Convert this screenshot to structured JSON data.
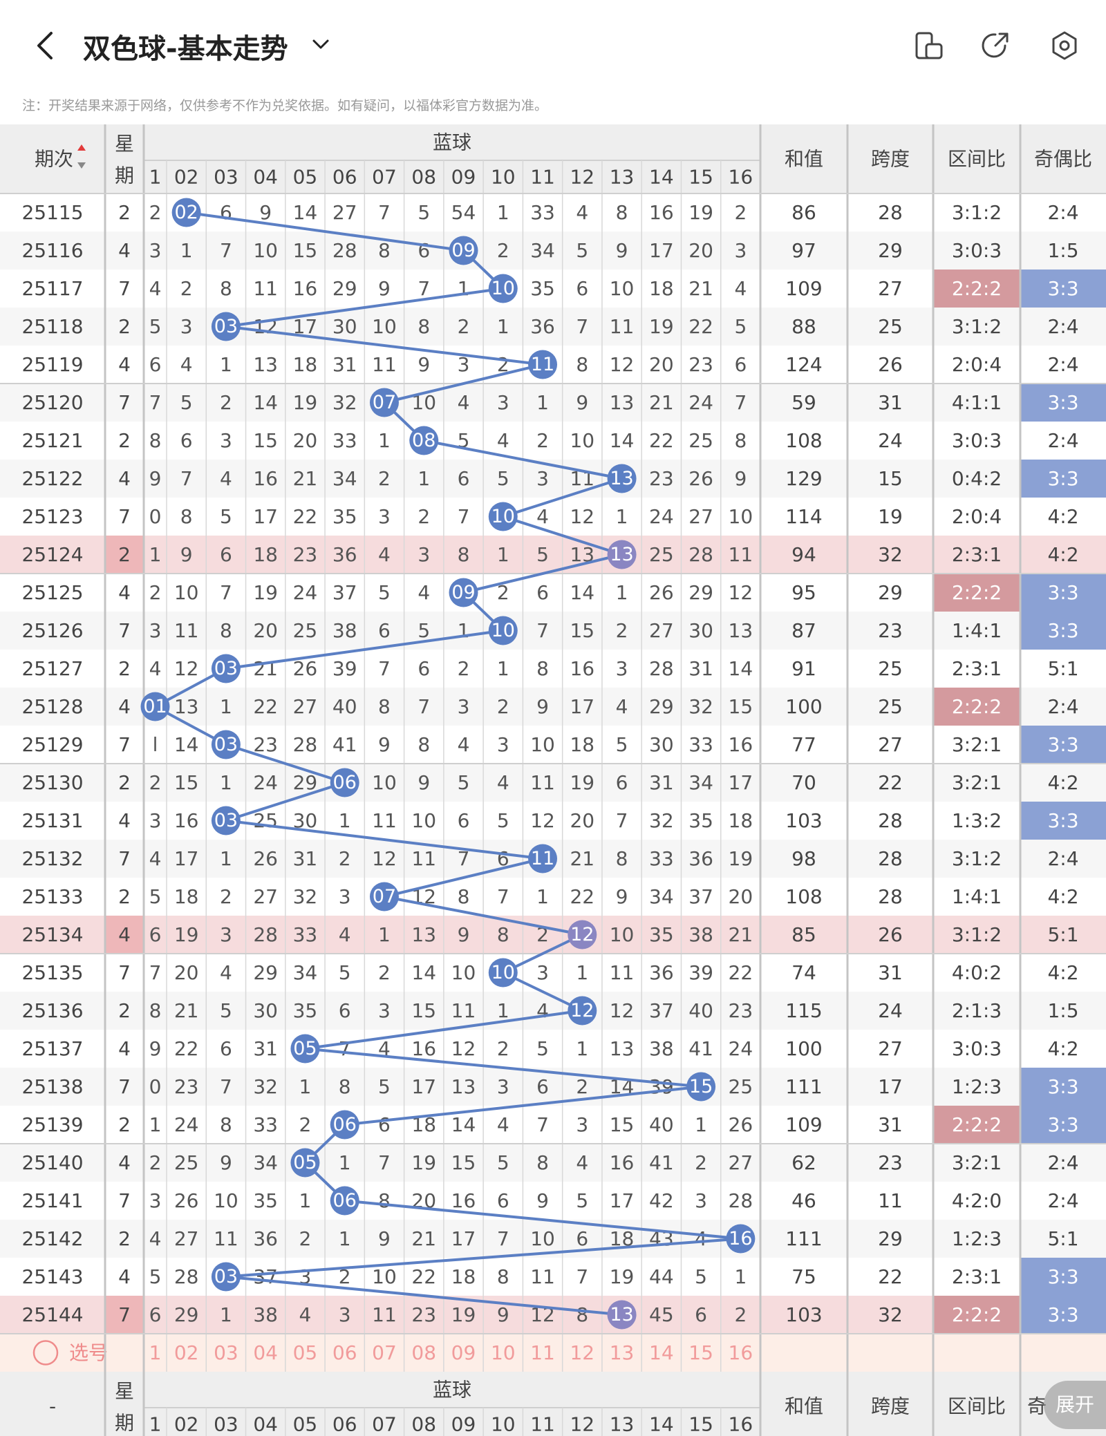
{
  "header": {
    "title": "双色球-基本走势",
    "back_icon": "chevron-left-icon",
    "dropdown_icon": "chevron-down-icon",
    "icons": [
      "phone-layout-icon",
      "share-icon",
      "settings-icon"
    ]
  },
  "note": "注：开奖结果来源于网络，仅供参考不作为兑奖依据。如有疑问，以福体彩官方数据为准。",
  "table": {
    "col_period": "期次",
    "col_week_top": "星",
    "col_week_bottom": "期",
    "col_blue": "蓝球",
    "col_sum": "和值",
    "col_span": "跨度",
    "col_zone": "区间比",
    "col_oddeven": "奇偶比",
    "blue_numbers": [
      "1",
      "02",
      "03",
      "04",
      "05",
      "06",
      "07",
      "08",
      "09",
      "10",
      "11",
      "12",
      "13",
      "14",
      "15",
      "16"
    ],
    "select_label": "选号",
    "footer_period": "-",
    "footer_oddeven": "奇",
    "expand_button": "展开",
    "colors": {
      "blue": "#5b7fc4",
      "zone_hit": "#d49a9e",
      "oddeven_hit": "#8ba1d4",
      "highlight_row": "#f6dcdd",
      "select_row": "#fdeee7"
    }
  },
  "rows": [
    {
      "period": "25115",
      "week": "2",
      "blue": 2,
      "cells": [
        "2",
        "",
        "6",
        "9",
        "14",
        "27",
        "7",
        "5",
        "54",
        "1",
        "33",
        "4",
        "8",
        "16",
        "19",
        "2"
      ],
      "sum": "86",
      "span": "28",
      "zone": "3:1:2",
      "oe": "2:4",
      "hl": false,
      "zoneHit": false,
      "oeHit": false
    },
    {
      "period": "25116",
      "week": "4",
      "blue": 9,
      "cells": [
        "3",
        "1",
        "7",
        "10",
        "15",
        "28",
        "8",
        "6",
        "",
        "2",
        "34",
        "5",
        "9",
        "17",
        "20",
        "3"
      ],
      "sum": "97",
      "span": "29",
      "zone": "3:0:3",
      "oe": "1:5",
      "hl": false,
      "zoneHit": false,
      "oeHit": false
    },
    {
      "period": "25117",
      "week": "7",
      "blue": 10,
      "cells": [
        "4",
        "2",
        "8",
        "11",
        "16",
        "29",
        "9",
        "7",
        "1",
        "",
        "35",
        "6",
        "10",
        "18",
        "21",
        "4"
      ],
      "sum": "109",
      "span": "27",
      "zone": "2:2:2",
      "oe": "3:3",
      "hl": false,
      "zoneHit": true,
      "oeHit": true
    },
    {
      "period": "25118",
      "week": "2",
      "blue": 3,
      "cells": [
        "5",
        "3",
        "",
        "12",
        "17",
        "30",
        "10",
        "8",
        "2",
        "1",
        "36",
        "7",
        "11",
        "19",
        "22",
        "5"
      ],
      "sum": "88",
      "span": "25",
      "zone": "3:1:2",
      "oe": "2:4",
      "hl": false,
      "zoneHit": false,
      "oeHit": false
    },
    {
      "period": "25119",
      "week": "4",
      "blue": 11,
      "cells": [
        "6",
        "4",
        "1",
        "13",
        "18",
        "31",
        "11",
        "9",
        "3",
        "2",
        "",
        "8",
        "12",
        "20",
        "23",
        "6"
      ],
      "sum": "124",
      "span": "26",
      "zone": "2:0:4",
      "oe": "2:4",
      "hl": false,
      "zoneHit": false,
      "oeHit": false
    },
    {
      "period": "25120",
      "week": "7",
      "blue": 7,
      "cells": [
        "7",
        "5",
        "2",
        "14",
        "19",
        "32",
        "",
        "10",
        "4",
        "3",
        "1",
        "9",
        "13",
        "21",
        "24",
        "7"
      ],
      "sum": "59",
      "span": "31",
      "zone": "4:1:1",
      "oe": "3:3",
      "hl": false,
      "zoneHit": false,
      "oeHit": true
    },
    {
      "period": "25121",
      "week": "2",
      "blue": 8,
      "cells": [
        "8",
        "6",
        "3",
        "15",
        "20",
        "33",
        "1",
        "",
        "5",
        "4",
        "2",
        "10",
        "14",
        "22",
        "25",
        "8"
      ],
      "sum": "108",
      "span": "24",
      "zone": "3:0:3",
      "oe": "2:4",
      "hl": false,
      "zoneHit": false,
      "oeHit": false
    },
    {
      "period": "25122",
      "week": "4",
      "blue": 13,
      "cells": [
        "9",
        "7",
        "4",
        "16",
        "21",
        "34",
        "2",
        "1",
        "6",
        "5",
        "3",
        "11",
        "",
        "23",
        "26",
        "9"
      ],
      "sum": "129",
      "span": "15",
      "zone": "0:4:2",
      "oe": "3:3",
      "hl": false,
      "zoneHit": false,
      "oeHit": true
    },
    {
      "period": "25123",
      "week": "7",
      "blue": 10,
      "cells": [
        "0",
        "8",
        "5",
        "17",
        "22",
        "35",
        "3",
        "2",
        "7",
        "",
        "4",
        "12",
        "1",
        "24",
        "27",
        "10"
      ],
      "sum": "114",
      "span": "19",
      "zone": "2:0:4",
      "oe": "4:2",
      "hl": false,
      "zoneHit": false,
      "oeHit": false
    },
    {
      "period": "25124",
      "week": "2",
      "blue": 13,
      "cells": [
        "1",
        "9",
        "6",
        "18",
        "23",
        "36",
        "4",
        "3",
        "8",
        "1",
        "5",
        "13",
        "",
        "25",
        "28",
        "11"
      ],
      "sum": "94",
      "span": "32",
      "zone": "2:3:1",
      "oe": "4:2",
      "hl": true,
      "zoneHit": false,
      "oeHit": false
    },
    {
      "period": "25125",
      "week": "4",
      "blue": 9,
      "cells": [
        "2",
        "10",
        "7",
        "19",
        "24",
        "37",
        "5",
        "4",
        "",
        "2",
        "6",
        "14",
        "1",
        "26",
        "29",
        "12"
      ],
      "sum": "95",
      "span": "29",
      "zone": "2:2:2",
      "oe": "3:3",
      "hl": false,
      "zoneHit": true,
      "oeHit": true
    },
    {
      "period": "25126",
      "week": "7",
      "blue": 10,
      "cells": [
        "3",
        "11",
        "8",
        "20",
        "25",
        "38",
        "6",
        "5",
        "1",
        "",
        "7",
        "15",
        "2",
        "27",
        "30",
        "13"
      ],
      "sum": "87",
      "span": "23",
      "zone": "1:4:1",
      "oe": "3:3",
      "hl": false,
      "zoneHit": false,
      "oeHit": true
    },
    {
      "period": "25127",
      "week": "2",
      "blue": 3,
      "cells": [
        "4",
        "12",
        "",
        "21",
        "26",
        "39",
        "7",
        "6",
        "2",
        "1",
        "8",
        "16",
        "3",
        "28",
        "31",
        "14"
      ],
      "sum": "91",
      "span": "25",
      "zone": "2:3:1",
      "oe": "5:1",
      "hl": false,
      "zoneHit": false,
      "oeHit": false
    },
    {
      "period": "25128",
      "week": "4",
      "blue": 1,
      "cells": [
        "",
        "13",
        "1",
        "22",
        "27",
        "40",
        "8",
        "7",
        "3",
        "2",
        "9",
        "17",
        "4",
        "29",
        "32",
        "15"
      ],
      "sum": "100",
      "span": "25",
      "zone": "2:2:2",
      "oe": "2:4",
      "hl": false,
      "zoneHit": true,
      "oeHit": false
    },
    {
      "period": "25129",
      "week": "7",
      "blue": 3,
      "cells": [
        "l",
        "14",
        "",
        "23",
        "28",
        "41",
        "9",
        "8",
        "4",
        "3",
        "10",
        "18",
        "5",
        "30",
        "33",
        "16"
      ],
      "sum": "77",
      "span": "27",
      "zone": "3:2:1",
      "oe": "3:3",
      "hl": false,
      "zoneHit": false,
      "oeHit": true
    },
    {
      "period": "25130",
      "week": "2",
      "blue": 6,
      "cells": [
        "2",
        "15",
        "1",
        "24",
        "29",
        "",
        "10",
        "9",
        "5",
        "4",
        "11",
        "19",
        "6",
        "31",
        "34",
        "17"
      ],
      "sum": "70",
      "span": "22",
      "zone": "3:2:1",
      "oe": "4:2",
      "hl": false,
      "zoneHit": false,
      "oeHit": false
    },
    {
      "period": "25131",
      "week": "4",
      "blue": 3,
      "cells": [
        "3",
        "16",
        "",
        "25",
        "30",
        "1",
        "11",
        "10",
        "6",
        "5",
        "12",
        "20",
        "7",
        "32",
        "35",
        "18"
      ],
      "sum": "103",
      "span": "28",
      "zone": "1:3:2",
      "oe": "3:3",
      "hl": false,
      "zoneHit": false,
      "oeHit": true
    },
    {
      "period": "25132",
      "week": "7",
      "blue": 11,
      "cells": [
        "4",
        "17",
        "1",
        "26",
        "31",
        "2",
        "12",
        "11",
        "7",
        "6",
        "",
        "21",
        "8",
        "33",
        "36",
        "19"
      ],
      "sum": "98",
      "span": "28",
      "zone": "3:1:2",
      "oe": "2:4",
      "hl": false,
      "zoneHit": false,
      "oeHit": false
    },
    {
      "period": "25133",
      "week": "2",
      "blue": 7,
      "cells": [
        "5",
        "18",
        "2",
        "27",
        "32",
        "3",
        "",
        "12",
        "8",
        "7",
        "1",
        "22",
        "9",
        "34",
        "37",
        "20"
      ],
      "sum": "108",
      "span": "28",
      "zone": "1:4:1",
      "oe": "4:2",
      "hl": false,
      "zoneHit": false,
      "oeHit": false
    },
    {
      "period": "25134",
      "week": "4",
      "blue": 12,
      "cells": [
        "6",
        "19",
        "3",
        "28",
        "33",
        "4",
        "1",
        "13",
        "9",
        "8",
        "2",
        "",
        "10",
        "35",
        "38",
        "21"
      ],
      "sum": "85",
      "span": "26",
      "zone": "3:1:2",
      "oe": "5:1",
      "hl": true,
      "zoneHit": false,
      "oeHit": false
    },
    {
      "period": "25135",
      "week": "7",
      "blue": 10,
      "cells": [
        "7",
        "20",
        "4",
        "29",
        "34",
        "5",
        "2",
        "14",
        "10",
        "",
        "3",
        "1",
        "11",
        "36",
        "39",
        "22"
      ],
      "sum": "74",
      "span": "31",
      "zone": "4:0:2",
      "oe": "4:2",
      "hl": false,
      "zoneHit": false,
      "oeHit": false
    },
    {
      "period": "25136",
      "week": "2",
      "blue": 12,
      "cells": [
        "8",
        "21",
        "5",
        "30",
        "35",
        "6",
        "3",
        "15",
        "11",
        "1",
        "4",
        "",
        "12",
        "37",
        "40",
        "23"
      ],
      "sum": "115",
      "span": "24",
      "zone": "2:1:3",
      "oe": "1:5",
      "hl": false,
      "zoneHit": false,
      "oeHit": false
    },
    {
      "period": "25137",
      "week": "4",
      "blue": 5,
      "cells": [
        "9",
        "22",
        "6",
        "31",
        "",
        "7",
        "4",
        "16",
        "12",
        "2",
        "5",
        "1",
        "13",
        "38",
        "41",
        "24"
      ],
      "sum": "100",
      "span": "27",
      "zone": "3:0:3",
      "oe": "4:2",
      "hl": false,
      "zoneHit": false,
      "oeHit": false
    },
    {
      "period": "25138",
      "week": "7",
      "blue": 15,
      "cells": [
        "0",
        "23",
        "7",
        "32",
        "1",
        "8",
        "5",
        "17",
        "13",
        "3",
        "6",
        "2",
        "14",
        "39",
        "",
        "25"
      ],
      "sum": "111",
      "span": "17",
      "zone": "1:2:3",
      "oe": "3:3",
      "hl": false,
      "zoneHit": false,
      "oeHit": true
    },
    {
      "period": "25139",
      "week": "2",
      "blue": 6,
      "cells": [
        "1",
        "24",
        "8",
        "33",
        "2",
        "",
        "6",
        "18",
        "14",
        "4",
        "7",
        "3",
        "15",
        "40",
        "1",
        "26"
      ],
      "sum": "109",
      "span": "31",
      "zone": "2:2:2",
      "oe": "3:3",
      "hl": false,
      "zoneHit": true,
      "oeHit": true
    },
    {
      "period": "25140",
      "week": "4",
      "blue": 5,
      "cells": [
        "2",
        "25",
        "9",
        "34",
        "",
        "1",
        "7",
        "19",
        "15",
        "5",
        "8",
        "4",
        "16",
        "41",
        "2",
        "27"
      ],
      "sum": "62",
      "span": "23",
      "zone": "3:2:1",
      "oe": "2:4",
      "hl": false,
      "zoneHit": false,
      "oeHit": false
    },
    {
      "period": "25141",
      "week": "7",
      "blue": 6,
      "cells": [
        "3",
        "26",
        "10",
        "35",
        "1",
        "",
        "8",
        "20",
        "16",
        "6",
        "9",
        "5",
        "17",
        "42",
        "3",
        "28"
      ],
      "sum": "46",
      "span": "11",
      "zone": "4:2:0",
      "oe": "2:4",
      "hl": false,
      "zoneHit": false,
      "oeHit": false
    },
    {
      "period": "25142",
      "week": "2",
      "blue": 16,
      "cells": [
        "4",
        "27",
        "11",
        "36",
        "2",
        "1",
        "9",
        "21",
        "17",
        "7",
        "10",
        "6",
        "18",
        "43",
        "4",
        ""
      ],
      "sum": "111",
      "span": "29",
      "zone": "1:2:3",
      "oe": "5:1",
      "hl": false,
      "zoneHit": false,
      "oeHit": false
    },
    {
      "period": "25143",
      "week": "4",
      "blue": 3,
      "cells": [
        "5",
        "28",
        "",
        "37",
        "3",
        "2",
        "10",
        "22",
        "18",
        "8",
        "11",
        "7",
        "19",
        "44",
        "5",
        "1"
      ],
      "sum": "75",
      "span": "22",
      "zone": "2:3:1",
      "oe": "3:3",
      "hl": false,
      "zoneHit": false,
      "oeHit": true
    },
    {
      "period": "25144",
      "week": "7",
      "blue": 13,
      "cells": [
        "6",
        "29",
        "1",
        "38",
        "4",
        "3",
        "11",
        "23",
        "19",
        "9",
        "12",
        "8",
        "",
        "45",
        "6",
        "2"
      ],
      "sum": "103",
      "span": "32",
      "zone": "2:2:2",
      "oe": "3:3",
      "hl": true,
      "zoneHit": true,
      "oeHit": true
    }
  ]
}
